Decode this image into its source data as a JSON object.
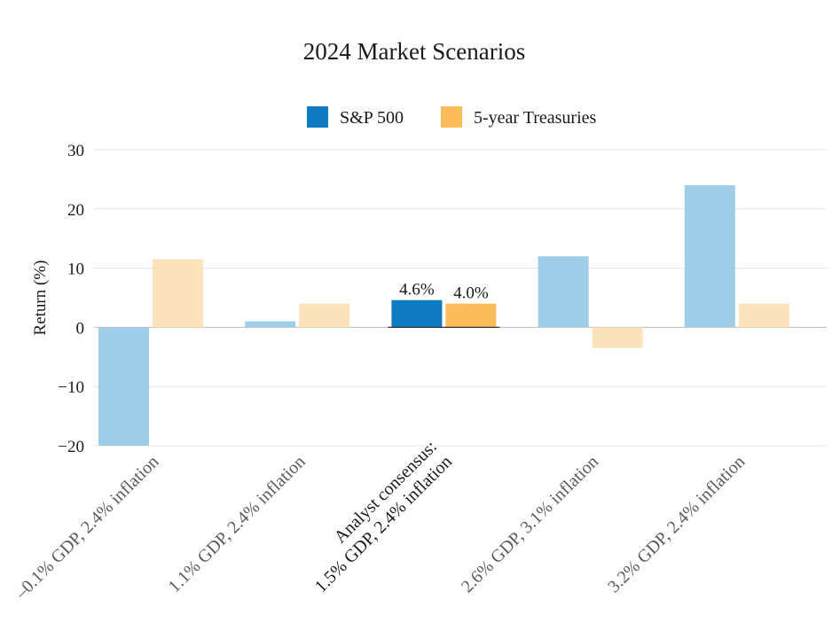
{
  "chart_data": {
    "type": "bar",
    "title": "2024  Market Scenarios",
    "ylabel": "Return (%)",
    "xlabel": "",
    "ylim": [
      -20,
      30
    ],
    "yticks": [
      30,
      20,
      10,
      0,
      -10,
      -20
    ],
    "ytick_labels": [
      "30",
      "20",
      "10",
      "0",
      "−10",
      "−20"
    ],
    "grid": true,
    "legend_position": "top-center",
    "highlight_index": 2,
    "categories": [
      [
        "–0.1% GDP, 2.4% inflation"
      ],
      [
        "1.1% GDP, 2.4% inflation"
      ],
      [
        "Analyst consensus:",
        "1.5% GDP, 2.4% inflation"
      ],
      [
        "2.6% GDP, 3.1% inflation"
      ],
      [
        "3.2% GDP, 2.4% inflation"
      ]
    ],
    "series": [
      {
        "name": "S&P 500",
        "values": [
          -20,
          1,
          4.6,
          12,
          24
        ],
        "color": "#0e7bc0",
        "muted_color": "#9fcce6"
      },
      {
        "name": "5-year Treasuries",
        "values": [
          11.5,
          4,
          4.0,
          -3.5,
          4
        ],
        "color": "#fdbc5a",
        "muted_color": "#fde3bd"
      }
    ],
    "data_labels": [
      {
        "category_index": 2,
        "series_index": 0,
        "text": "4.6%"
      },
      {
        "category_index": 2,
        "series_index": 1,
        "text": "4.0%"
      }
    ]
  }
}
